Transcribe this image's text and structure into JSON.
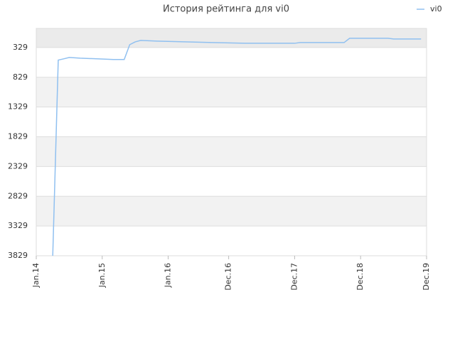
{
  "chart_data": {
    "type": "line",
    "title": "История рейтинга для vi0",
    "x": [
      "2014-04",
      "2014-05",
      "2014-06",
      "2014-07",
      "2014-09",
      "2014-12",
      "2015-03",
      "2015-05",
      "2015-06",
      "2015-07",
      "2015-08",
      "2015-11",
      "2016-04",
      "2016-09",
      "2017-03",
      "2017-12",
      "2018-01",
      "2018-09",
      "2018-10",
      "2019-05",
      "2019-06",
      "2019-11"
    ],
    "series": [
      {
        "name": "vi0",
        "color": "#90c0f0",
        "values": [
          3829,
          540,
          519,
          496,
          508,
          519,
          531,
          531,
          281,
          234,
          210,
          222,
          234,
          246,
          258,
          258,
          246,
          246,
          174,
          174,
          186,
          186
        ]
      }
    ],
    "xlim": [
      "2014-01",
      "2019-12"
    ],
    "xticks": [
      {
        "value": "2014-01",
        "label": "Jan.14"
      },
      {
        "value": "2015-01",
        "label": "Jan.15"
      },
      {
        "value": "2016-01",
        "label": "Jan.16"
      },
      {
        "value": "2016-12",
        "label": "Dec.16"
      },
      {
        "value": "2017-12",
        "label": "Dec.17"
      },
      {
        "value": "2018-12",
        "label": "Dec.18"
      },
      {
        "value": "2019-12",
        "label": "Dec.19"
      }
    ],
    "ylim": [
      3829,
      8
    ],
    "yticks": [
      329,
      829,
      1329,
      1829,
      2329,
      2829,
      3329,
      3829
    ],
    "grid": true,
    "legend": "top-right"
  }
}
